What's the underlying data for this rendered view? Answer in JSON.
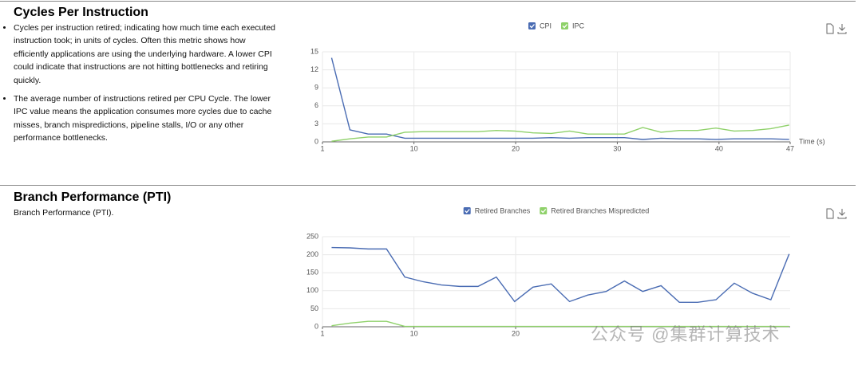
{
  "sections": [
    {
      "title": "Cycles Per Instruction",
      "bullets": [
        "Cycles per instruction retired; indicating how much time each executed instruction took; in units of cycles. Often this metric shows how efficiently applications are using the underlying hardware. A lower CPI could indicate that instructions are not hitting bottlenecks and retiring quickly.",
        "The average number of instructions retired per CPU Cycle. The lower IPC value means the application consumes more cycles due to cache misses, branch mispredictions, pipeline stalls, I/O or any other performance bottlenecks."
      ]
    },
    {
      "title": "Branch Performance (PTI)",
      "text": "Branch Performance (PTI)."
    }
  ],
  "watermark": "公众号 @集群计算技术",
  "chart_data": [
    {
      "type": "line",
      "x_label": "Time (s)",
      "x": [
        1.9,
        3.7,
        5.5,
        7.3,
        9.1,
        10.9,
        12.7,
        14.5,
        16.3,
        18.1,
        19.9,
        21.7,
        23.5,
        25.3,
        27.1,
        28.9,
        30.7,
        32.5,
        34.3,
        36.1,
        37.9,
        39.7,
        41.5,
        43.3,
        45.1,
        46.9
      ],
      "xlim": [
        1,
        47
      ],
      "xticks": [
        1,
        10,
        20,
        30,
        40,
        47
      ],
      "ylim": [
        0,
        15
      ],
      "yticks": [
        0,
        3,
        6,
        9,
        12,
        15
      ],
      "grid": true,
      "series": [
        {
          "name": "CPI",
          "color": "#4a6cb3",
          "values": [
            14,
            2,
            1.3,
            1.3,
            0.6,
            0.6,
            0.6,
            0.6,
            0.6,
            0.6,
            0.6,
            0.6,
            0.7,
            0.6,
            0.7,
            0.7,
            0.7,
            0.4,
            0.6,
            0.5,
            0.5,
            0.4,
            0.5,
            0.5,
            0.5,
            0.4
          ]
        },
        {
          "name": "IPC",
          "color": "#8fd16a",
          "values": [
            0.1,
            0.5,
            0.8,
            0.8,
            1.6,
            1.7,
            1.7,
            1.7,
            1.7,
            1.9,
            1.8,
            1.5,
            1.4,
            1.8,
            1.3,
            1.3,
            1.3,
            2.4,
            1.6,
            1.9,
            1.9,
            2.3,
            1.8,
            1.9,
            2.2,
            2.8
          ]
        }
      ]
    },
    {
      "type": "line",
      "x": [
        1.9,
        3.7,
        5.5,
        7.3,
        9.1,
        10.9,
        12.7,
        14.5,
        16.3,
        18.1,
        19.9,
        21.7,
        23.5,
        25.3,
        27.1,
        28.9,
        30.7,
        32.5,
        34.3,
        36.1,
        37.9,
        39.7,
        41.5,
        43.3,
        45.1,
        46.9
      ],
      "xlim": [
        1,
        47
      ],
      "xticks": [
        1,
        10,
        20
      ],
      "ylim": [
        0,
        250
      ],
      "yticks": [
        0,
        50,
        100,
        150,
        200,
        250
      ],
      "grid": true,
      "series": [
        {
          "name": "Retired Branches",
          "color": "#4a6cb3",
          "values": [
            220,
            219,
            216,
            216,
            138,
            125,
            116,
            112,
            112,
            138,
            70,
            110,
            119,
            70,
            88,
            98,
            127,
            98,
            114,
            68,
            68,
            75,
            121,
            93,
            75,
            202
          ]
        },
        {
          "name": "Retired Branches Mispredicted",
          "color": "#8fd16a",
          "values": [
            3,
            10,
            15,
            15,
            1,
            1,
            1,
            1,
            1,
            1,
            1,
            1,
            1,
            1,
            1,
            1,
            1,
            1,
            1,
            1,
            1,
            1,
            1,
            1,
            1,
            1
          ]
        }
      ]
    }
  ]
}
